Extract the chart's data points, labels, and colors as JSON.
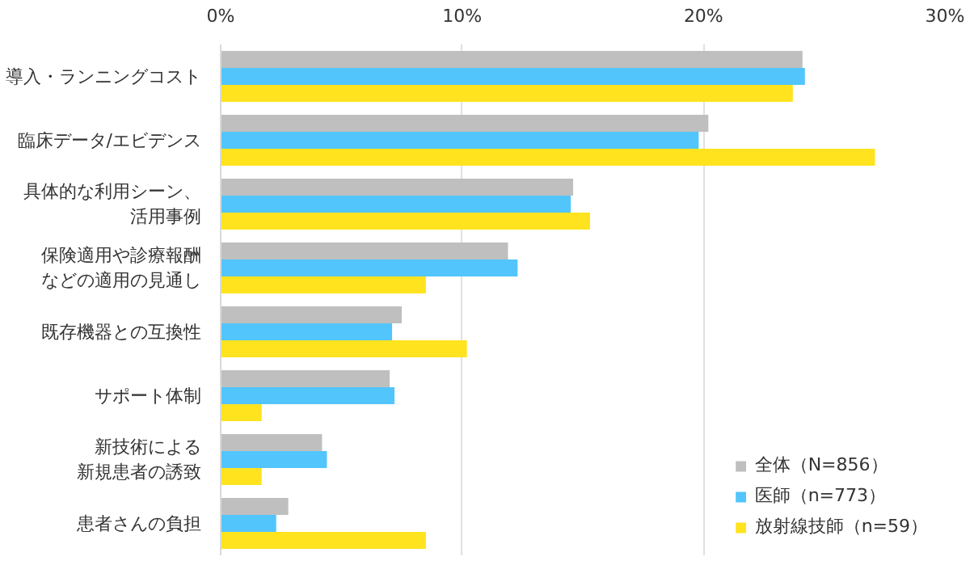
{
  "chart_data": {
    "type": "bar",
    "orientation": "horizontal",
    "categories": [
      "導入・ランニングコスト",
      "臨床データ/エビデンス",
      "具体的な利用シーン、活用事例",
      "保険適用や診療報酬などの適用の見通し",
      "既存機器との互換性",
      "サポート体制",
      "新技術による新規患者の誘致",
      "患者さんの負担"
    ],
    "series": [
      {
        "name": "全体（N=856）",
        "color": "#bfbfbf",
        "values": [
          24.1,
          20.2,
          14.6,
          11.9,
          7.5,
          7.0,
          4.2,
          2.8
        ]
      },
      {
        "name": "医師（n=773）",
        "color": "#52c5fc",
        "values": [
          24.2,
          19.8,
          14.5,
          12.3,
          7.1,
          7.2,
          4.4,
          2.3
        ]
      },
      {
        "name": "放射線技師（n=59）",
        "color": "#ffe31f",
        "values": [
          23.7,
          27.1,
          15.3,
          8.5,
          10.2,
          1.7,
          1.7,
          8.5
        ]
      }
    ],
    "xlim": [
      0,
      30
    ],
    "xticks": [
      {
        "value": 0,
        "label": "0%"
      },
      {
        "value": 10,
        "label": "10%"
      },
      {
        "value": 20,
        "label": "20%"
      },
      {
        "value": 30,
        "label": "30%"
      }
    ],
    "grid": "x",
    "legend": "bottom right"
  }
}
